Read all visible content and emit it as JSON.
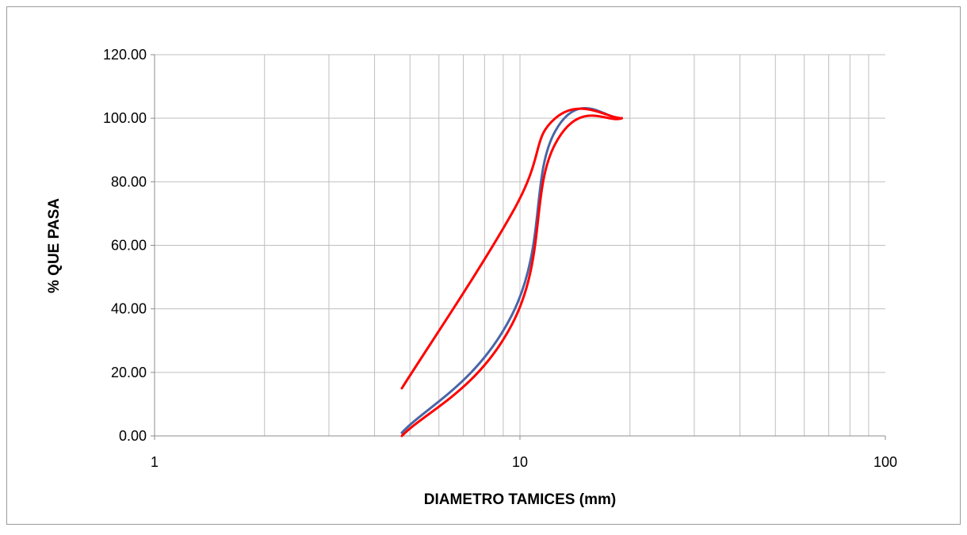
{
  "chart_data": {
    "type": "line",
    "title": "",
    "xlabel": "DIAMETRO TAMICES (mm)",
    "ylabel": "% QUE PASA",
    "x_scale": "log",
    "xlim": [
      1,
      100
    ],
    "ylim": [
      0,
      120
    ],
    "x_ticks": [
      "1",
      "10",
      "100"
    ],
    "y_ticks": [
      "0.00",
      "20.00",
      "40.00",
      "60.00",
      "80.00",
      "100.00",
      "120.00"
    ],
    "grid": true,
    "legend": "none",
    "series": [
      {
        "color": "#4a65a6",
        "x": [
          4.75,
          9.5,
          12.5,
          19.0
        ],
        "y": [
          1.0,
          38.0,
          96.0,
          100.0
        ]
      },
      {
        "color": "#ff0000",
        "x": [
          4.75,
          9.5,
          12.5,
          19.0
        ],
        "y": [
          0.0,
          35.0,
          92.0,
          100.0
        ]
      },
      {
        "color": "#ff0000",
        "x": [
          4.75,
          9.5,
          12.5,
          19.0
        ],
        "y": [
          15.0,
          70.0,
          100.0,
          100.0
        ]
      }
    ]
  }
}
